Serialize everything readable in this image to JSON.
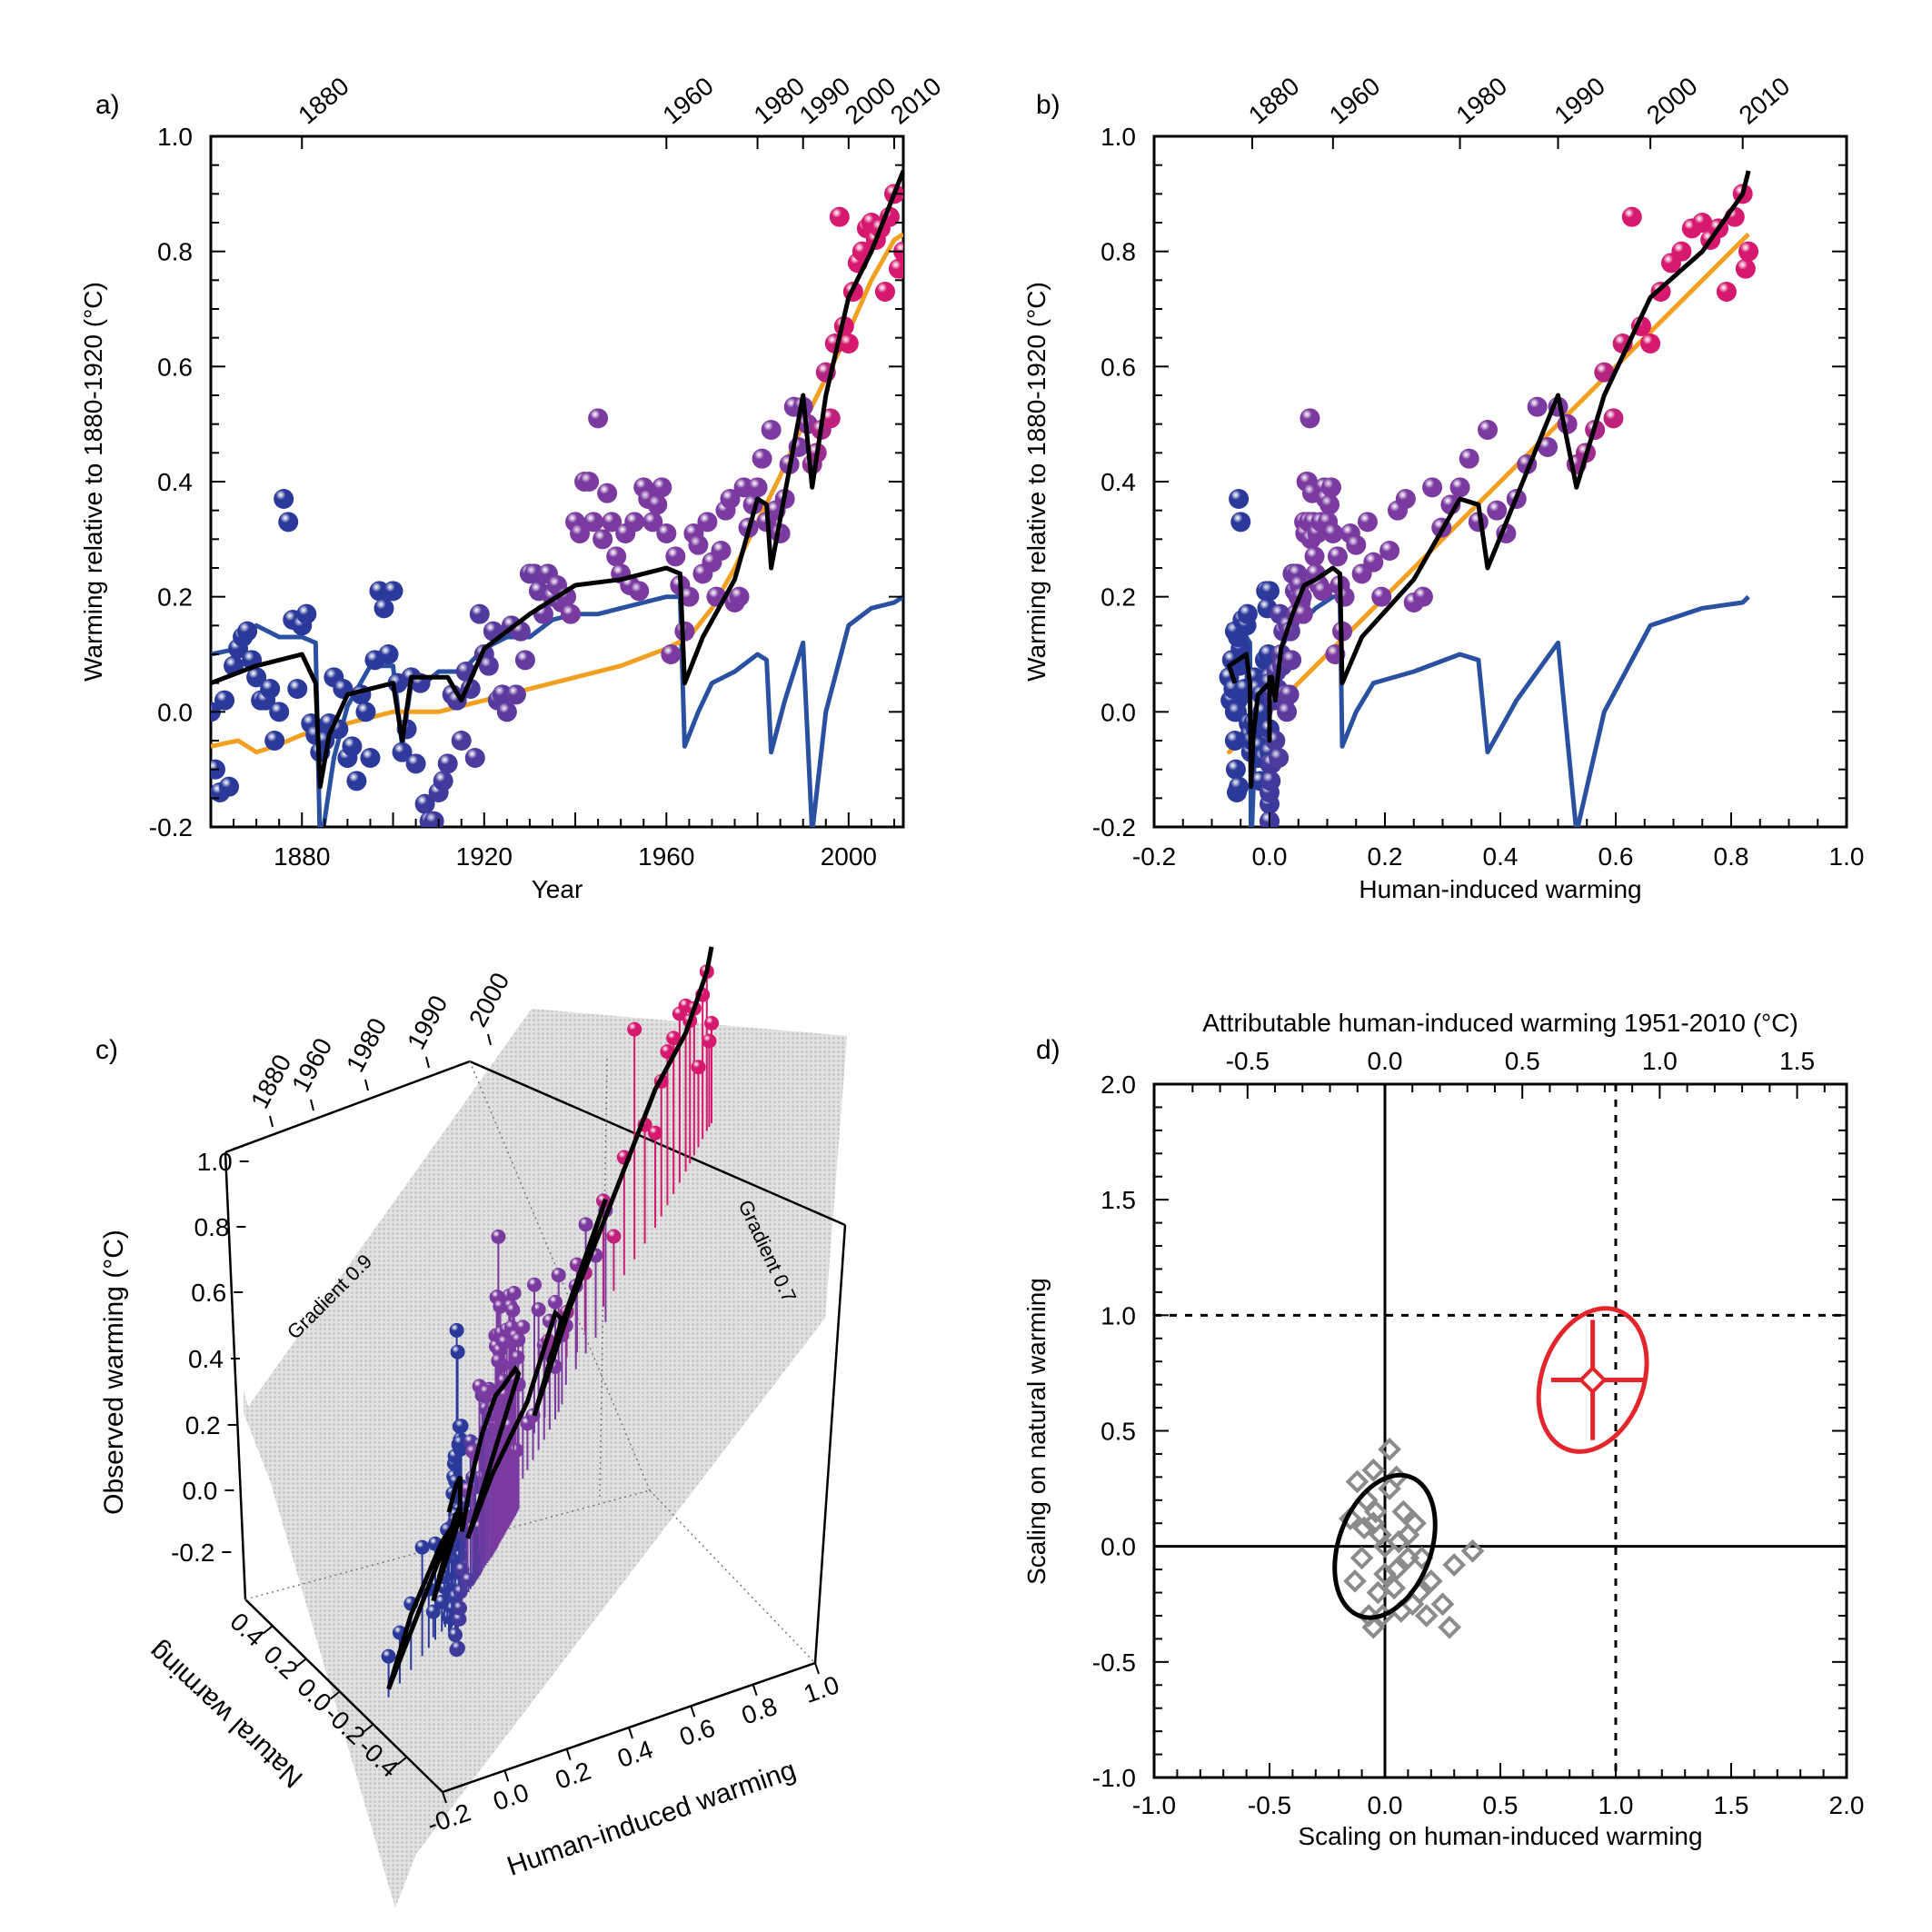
{
  "panels": {
    "a": {
      "letter": "a)"
    },
    "b": {
      "letter": "b)"
    },
    "c": {
      "letter": "c)"
    },
    "d": {
      "letter": "d)"
    }
  },
  "chart_data": [
    {
      "id": "a",
      "type": "scatter",
      "xlabel": "Year",
      "ylabel": "Warming relative to 1880-1920 (°C)",
      "xlim": [
        1860,
        2012
      ],
      "ylim": [
        -0.2,
        1.0
      ],
      "xticks": [
        1880,
        1920,
        1960,
        2000
      ],
      "yticks": [
        -0.2,
        0.0,
        0.2,
        0.4,
        0.6,
        0.8,
        1.0
      ],
      "top_ticks": [
        1880,
        1960,
        1980,
        1990,
        2000,
        2010
      ],
      "colors": {
        "observed_early": "#2b3a9a",
        "observed_mid": "#7b3aa0",
        "observed_late": "#d6186e",
        "black_line": "#000000",
        "orange_line": "#f2a022",
        "blue_line": "#2a50a2"
      },
      "points": [
        [
          1860,
          0.0
        ],
        [
          1861,
          -0.1
        ],
        [
          1862,
          -0.14
        ],
        [
          1863,
          0.02
        ],
        [
          1864,
          -0.13
        ],
        [
          1865,
          0.08
        ],
        [
          1866,
          0.11
        ],
        [
          1867,
          0.13
        ],
        [
          1868,
          0.14
        ],
        [
          1869,
          0.09
        ],
        [
          1870,
          0.06
        ],
        [
          1871,
          0.02
        ],
        [
          1872,
          0.02
        ],
        [
          1873,
          0.04
        ],
        [
          1874,
          -0.05
        ],
        [
          1875,
          0.0
        ],
        [
          1876,
          0.37
        ],
        [
          1877,
          0.33
        ],
        [
          1878,
          0.16
        ],
        [
          1879,
          0.04
        ],
        [
          1880,
          0.15
        ],
        [
          1881,
          0.17
        ],
        [
          1882,
          -0.02
        ],
        [
          1883,
          -0.04
        ],
        [
          1884,
          -0.07
        ],
        [
          1885,
          -0.05
        ],
        [
          1886,
          -0.02
        ],
        [
          1887,
          0.06
        ],
        [
          1888,
          -0.03
        ],
        [
          1889,
          0.04
        ],
        [
          1890,
          -0.08
        ],
        [
          1891,
          -0.06
        ],
        [
          1892,
          -0.12
        ],
        [
          1893,
          0.03
        ],
        [
          1894,
          0.0
        ],
        [
          1895,
          -0.08
        ],
        [
          1896,
          0.09
        ],
        [
          1897,
          0.21
        ],
        [
          1898,
          0.18
        ],
        [
          1899,
          0.1
        ],
        [
          1900,
          0.21
        ],
        [
          1901,
          0.05
        ],
        [
          1902,
          -0.07
        ],
        [
          1903,
          -0.03
        ],
        [
          1904,
          0.06
        ],
        [
          1905,
          -0.09
        ],
        [
          1906,
          0.05
        ],
        [
          1907,
          -0.16
        ],
        [
          1908,
          -0.19
        ],
        [
          1909,
          -0.19
        ],
        [
          1910,
          -0.14
        ],
        [
          1911,
          -0.12
        ],
        [
          1912,
          -0.09
        ],
        [
          1913,
          0.03
        ],
        [
          1914,
          0.02
        ],
        [
          1915,
          -0.05
        ],
        [
          1916,
          0.07
        ],
        [
          1917,
          0.04
        ],
        [
          1918,
          -0.08
        ],
        [
          1919,
          0.17
        ],
        [
          1920,
          0.1
        ],
        [
          1921,
          0.08
        ],
        [
          1922,
          0.14
        ],
        [
          1923,
          0.02
        ],
        [
          1924,
          0.03
        ],
        [
          1925,
          0.0
        ],
        [
          1926,
          0.15
        ],
        [
          1927,
          0.03
        ],
        [
          1928,
          0.14
        ],
        [
          1929,
          0.09
        ],
        [
          1930,
          0.24
        ],
        [
          1931,
          0.24
        ],
        [
          1932,
          0.21
        ],
        [
          1933,
          0.17
        ],
        [
          1934,
          0.24
        ],
        [
          1935,
          0.2
        ],
        [
          1936,
          0.22
        ],
        [
          1937,
          0.19
        ],
        [
          1938,
          0.2
        ],
        [
          1939,
          0.17
        ],
        [
          1940,
          0.33
        ],
        [
          1941,
          0.31
        ],
        [
          1942,
          0.4
        ],
        [
          1943,
          0.4
        ],
        [
          1944,
          0.33
        ],
        [
          1945,
          0.51
        ],
        [
          1946,
          0.3
        ],
        [
          1947,
          0.38
        ],
        [
          1948,
          0.33
        ],
        [
          1949,
          0.27
        ],
        [
          1950,
          0.24
        ],
        [
          1951,
          0.31
        ],
        [
          1952,
          0.22
        ],
        [
          1953,
          0.33
        ],
        [
          1954,
          0.21
        ],
        [
          1955,
          0.39
        ],
        [
          1956,
          0.37
        ],
        [
          1957,
          0.33
        ],
        [
          1958,
          0.36
        ],
        [
          1959,
          0.39
        ],
        [
          1960,
          0.31
        ],
        [
          1961,
          0.1
        ],
        [
          1962,
          0.27
        ],
        [
          1963,
          0.22
        ],
        [
          1964,
          0.14
        ],
        [
          1965,
          0.2
        ],
        [
          1966,
          0.31
        ],
        [
          1967,
          0.29
        ],
        [
          1968,
          0.24
        ],
        [
          1969,
          0.33
        ],
        [
          1970,
          0.26
        ],
        [
          1971,
          0.2
        ],
        [
          1972,
          0.28
        ],
        [
          1973,
          0.35
        ],
        [
          1974,
          0.37
        ],
        [
          1975,
          0.19
        ],
        [
          1976,
          0.2
        ],
        [
          1977,
          0.39
        ],
        [
          1978,
          0.32
        ],
        [
          1979,
          0.36
        ],
        [
          1980,
          0.39
        ],
        [
          1981,
          0.44
        ],
        [
          1982,
          0.33
        ],
        [
          1983,
          0.49
        ],
        [
          1984,
          0.35
        ],
        [
          1985,
          0.31
        ],
        [
          1986,
          0.37
        ],
        [
          1987,
          0.43
        ],
        [
          1988,
          0.53
        ],
        [
          1989,
          0.46
        ],
        [
          1990,
          0.53
        ],
        [
          1991,
          0.5
        ],
        [
          1992,
          0.43
        ],
        [
          1993,
          0.45
        ],
        [
          1994,
          0.49
        ],
        [
          1995,
          0.59
        ],
        [
          1996,
          0.51
        ],
        [
          1997,
          0.64
        ],
        [
          1998,
          0.86
        ],
        [
          1999,
          0.67
        ],
        [
          2000,
          0.64
        ],
        [
          2001,
          0.73
        ],
        [
          2002,
          0.78
        ],
        [
          2003,
          0.8
        ],
        [
          2004,
          0.84
        ],
        [
          2005,
          0.85
        ],
        [
          2006,
          0.82
        ],
        [
          2007,
          0.84
        ],
        [
          2008,
          0.73
        ],
        [
          2009,
          0.86
        ],
        [
          2010,
          0.9
        ],
        [
          2011,
          0.77
        ],
        [
          2012,
          0.8
        ]
      ],
      "black_line": [
        [
          1860,
          0.05
        ],
        [
          1870,
          0.08
        ],
        [
          1880,
          0.1
        ],
        [
          1883,
          0.05
        ],
        [
          1884,
          -0.13
        ],
        [
          1886,
          -0.04
        ],
        [
          1890,
          0.03
        ],
        [
          1900,
          0.05
        ],
        [
          1902,
          -0.05
        ],
        [
          1904,
          0.06
        ],
        [
          1912,
          0.06
        ],
        [
          1915,
          0.02
        ],
        [
          1920,
          0.11
        ],
        [
          1930,
          0.17
        ],
        [
          1940,
          0.22
        ],
        [
          1950,
          0.23
        ],
        [
          1960,
          0.25
        ],
        [
          1963,
          0.24
        ],
        [
          1964,
          0.05
        ],
        [
          1968,
          0.13
        ],
        [
          1975,
          0.23
        ],
        [
          1980,
          0.37
        ],
        [
          1982,
          0.36
        ],
        [
          1983,
          0.25
        ],
        [
          1990,
          0.55
        ],
        [
          1992,
          0.39
        ],
        [
          1995,
          0.55
        ],
        [
          2000,
          0.72
        ],
        [
          2005,
          0.8
        ],
        [
          2010,
          0.9
        ],
        [
          2012,
          0.94
        ]
      ],
      "orange_line": [
        [
          1860,
          -0.06
        ],
        [
          1866,
          -0.05
        ],
        [
          1870,
          -0.07
        ],
        [
          1874,
          -0.06
        ],
        [
          1880,
          -0.04
        ],
        [
          1885,
          -0.03
        ],
        [
          1890,
          -0.02
        ],
        [
          1900,
          0.0
        ],
        [
          1910,
          0.0
        ],
        [
          1920,
          0.02
        ],
        [
          1930,
          0.04
        ],
        [
          1940,
          0.06
        ],
        [
          1950,
          0.08
        ],
        [
          1960,
          0.11
        ],
        [
          1965,
          0.13
        ],
        [
          1970,
          0.18
        ],
        [
          1975,
          0.25
        ],
        [
          1980,
          0.33
        ],
        [
          1985,
          0.41
        ],
        [
          1990,
          0.5
        ],
        [
          1995,
          0.58
        ],
        [
          2000,
          0.66
        ],
        [
          2005,
          0.75
        ],
        [
          2010,
          0.82
        ],
        [
          2012,
          0.83
        ]
      ],
      "blue_line": [
        [
          1860,
          0.1
        ],
        [
          1866,
          0.11
        ],
        [
          1870,
          0.15
        ],
        [
          1875,
          0.13
        ],
        [
          1880,
          0.13
        ],
        [
          1883,
          0.12
        ],
        [
          1884,
          -0.24
        ],
        [
          1887,
          -0.08
        ],
        [
          1890,
          0.01
        ],
        [
          1895,
          0.08
        ],
        [
          1900,
          0.08
        ],
        [
          1902,
          -0.06
        ],
        [
          1904,
          0.05
        ],
        [
          1907,
          0.05
        ],
        [
          1910,
          0.07
        ],
        [
          1915,
          0.07
        ],
        [
          1920,
          0.11
        ],
        [
          1925,
          0.13
        ],
        [
          1930,
          0.13
        ],
        [
          1935,
          0.16
        ],
        [
          1940,
          0.17
        ],
        [
          1945,
          0.17
        ],
        [
          1950,
          0.18
        ],
        [
          1955,
          0.19
        ],
        [
          1960,
          0.2
        ],
        [
          1963,
          0.2
        ],
        [
          1964,
          -0.06
        ],
        [
          1967,
          0.0
        ],
        [
          1970,
          0.05
        ],
        [
          1975,
          0.07
        ],
        [
          1980,
          0.1
        ],
        [
          1982,
          0.09
        ],
        [
          1983,
          -0.07
        ],
        [
          1986,
          0.02
        ],
        [
          1990,
          0.12
        ],
        [
          1992,
          -0.21
        ],
        [
          1995,
          0.0
        ],
        [
          2000,
          0.15
        ],
        [
          2005,
          0.18
        ],
        [
          2010,
          0.19
        ],
        [
          2012,
          0.2
        ]
      ]
    },
    {
      "id": "b",
      "type": "scatter",
      "xlabel": "Human-induced warming",
      "ylabel": "Warming relative to 1880-1920 (°C)",
      "xlim": [
        -0.2,
        1.0
      ],
      "ylim": [
        -0.2,
        1.0
      ],
      "xticks": [
        -0.2,
        0.0,
        0.2,
        0.4,
        0.6,
        0.8,
        1.0
      ],
      "yticks": [
        -0.2,
        0.0,
        0.2,
        0.4,
        0.6,
        0.8,
        1.0
      ],
      "top_ticks": [
        {
          "label": "1880",
          "x": -0.03
        },
        {
          "label": "1960",
          "x": 0.11
        },
        {
          "label": "1980",
          "x": 0.33
        },
        {
          "label": "1990",
          "x": 0.5
        },
        {
          "label": "2000",
          "x": 0.66
        },
        {
          "label": "2010",
          "x": 0.82
        }
      ]
    },
    {
      "id": "c",
      "type": "scatter",
      "xlabel": "Human-induced warming",
      "ylabel": "Observed warming (°C)",
      "zlabel": "Natural warming",
      "x_ticks": [
        "-0.2",
        "0.0",
        "0.2",
        "0.4",
        "0.6",
        "0.8",
        "1.0"
      ],
      "z_ticks": [
        "-0.2",
        "0.0",
        "0.2",
        "0.4",
        "0.6",
        "0.8",
        "1.0"
      ],
      "nat_ticks": [
        "0.4",
        "0.2",
        "0.0",
        "-0.2",
        "-0.4"
      ],
      "top_ticks": [
        "1880",
        "1960",
        "1980",
        "1990",
        "2000"
      ],
      "annotations": [
        "Gradient 0.9",
        "Gradient 0.7"
      ]
    },
    {
      "id": "d",
      "type": "scatter",
      "xlabel": "Scaling on human-induced warming",
      "ylabel": "Scaling on natural warming",
      "top_label": "Attributable human-induced warming 1951-2010 (°C)",
      "xlim": [
        -1.0,
        2.0
      ],
      "ylim": [
        -1.0,
        2.0
      ],
      "xticks": [
        -1.0,
        -0.5,
        0.0,
        0.5,
        1.0,
        1.5,
        2.0
      ],
      "yticks": [
        -1.0,
        -0.5,
        0.0,
        0.5,
        1.0,
        1.5,
        2.0
      ],
      "top_ticks": [
        -0.5,
        0.0,
        0.5,
        1.0,
        1.5
      ],
      "best_estimate": {
        "x": 0.9,
        "y": 0.72,
        "x_range": [
          0.72,
          1.12
        ],
        "y_range": [
          0.46,
          0.98
        ]
      },
      "ellipse_red": {
        "cx": 0.9,
        "cy": 0.72,
        "rx": 0.22,
        "ry": 0.32,
        "tilt_deg": 20
      },
      "ellipse_black": {
        "cx": 0.0,
        "cy": 0.0,
        "rx": 0.2,
        "ry": 0.32,
        "tilt_deg": 20
      },
      "diamonds": [
        [
          0.0,
          0.0
        ],
        [
          -0.05,
          0.1
        ],
        [
          0.05,
          -0.1
        ],
        [
          0.02,
          0.25
        ],
        [
          -0.08,
          0.2
        ],
        [
          0.1,
          -0.05
        ],
        [
          -0.1,
          -0.05
        ],
        [
          0.08,
          0.15
        ],
        [
          -0.03,
          -0.2
        ],
        [
          0.12,
          -0.25
        ],
        [
          -0.12,
          0.28
        ],
        [
          -0.05,
          0.33
        ],
        [
          0.02,
          0.42
        ],
        [
          -0.15,
          0.12
        ],
        [
          0.15,
          -0.2
        ],
        [
          0.2,
          -0.15
        ],
        [
          0.25,
          -0.25
        ],
        [
          0.28,
          -0.35
        ],
        [
          0.38,
          -0.02
        ],
        [
          0.3,
          -0.08
        ],
        [
          0.05,
          0.3
        ],
        [
          -0.07,
          -0.3
        ],
        [
          -0.05,
          -0.35
        ],
        [
          -0.01,
          -0.3
        ],
        [
          0.18,
          -0.3
        ],
        [
          0.1,
          0.05
        ],
        [
          -0.02,
          0.05
        ],
        [
          0.06,
          0.02
        ],
        [
          -0.09,
          0.08
        ],
        [
          0.13,
          0.1
        ],
        [
          0.0,
          -0.12
        ],
        [
          -0.13,
          -0.15
        ],
        [
          0.04,
          -0.18
        ],
        [
          -0.04,
          0.15
        ],
        [
          0.16,
          -0.05
        ],
        [
          0.07,
          -0.28
        ]
      ],
      "colors": {
        "red": "#e4252c",
        "black": "#000000",
        "diamond": "#8b8b8b"
      }
    }
  ]
}
